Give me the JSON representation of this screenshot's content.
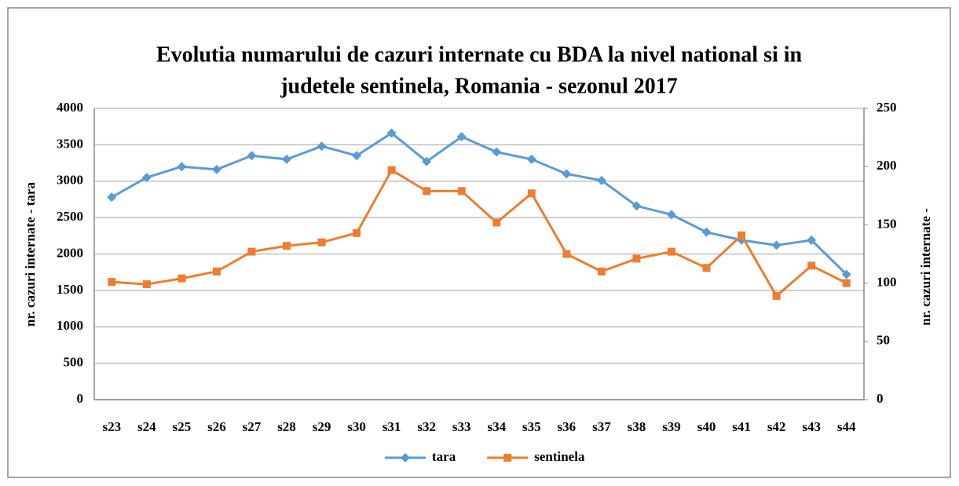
{
  "chart_data": {
    "type": "line",
    "title": [
      "Evolutia numarului de cazuri internate cu BDA la nivel national si in",
      "judetele sentinela, Romania - sezonul 2017"
    ],
    "y_label": "nr. cazuri internate - tara",
    "y2_label": "nr. cazuri internate -",
    "categories": [
      "s23",
      "s24",
      "s25",
      "s26",
      "s27",
      "s28",
      "s29",
      "s30",
      "s31",
      "s32",
      "s33",
      "s34",
      "s35",
      "s36",
      "s37",
      "s38",
      "s39",
      "s40",
      "s41",
      "s42",
      "s43",
      "s44"
    ],
    "series": [
      {
        "name": "tara",
        "color": "#5b9bd5",
        "marker": "diamond",
        "axis": "y",
        "values": [
          2780,
          3050,
          3200,
          3160,
          3350,
          3300,
          3480,
          3350,
          3660,
          3270,
          3610,
          3400,
          3300,
          3100,
          3010,
          2660,
          2540,
          2300,
          2190,
          2120,
          2190,
          1720
        ]
      },
      {
        "name": "sentinela",
        "color": "#ed7d31",
        "marker": "square",
        "axis": "y2",
        "values": [
          101,
          99,
          104,
          110,
          127,
          132,
          135,
          143,
          197,
          179,
          179,
          152,
          177,
          125,
          110,
          121,
          127,
          113,
          141,
          89,
          115,
          100
        ]
      }
    ],
    "ylim": [
      0,
      4000
    ],
    "yticks": [
      0,
      500,
      1000,
      1500,
      2000,
      2500,
      3000,
      3500,
      4000
    ],
    "y2lim": [
      0,
      250
    ],
    "y2ticks": [
      0,
      50,
      100,
      150,
      200,
      250
    ],
    "grid": true,
    "legend": "bottom"
  }
}
